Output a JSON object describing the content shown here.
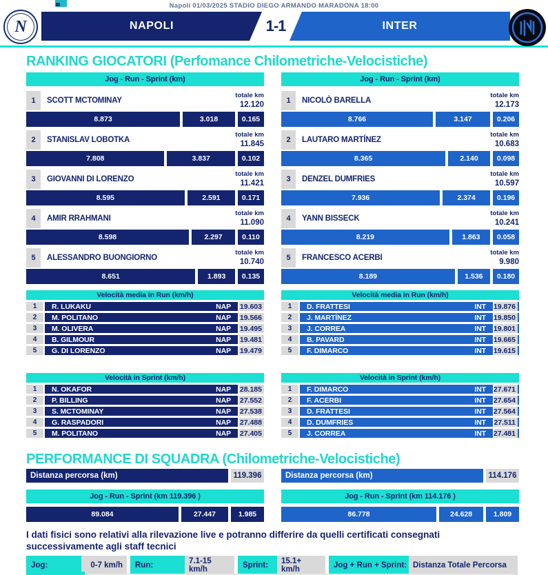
{
  "colors": {
    "napoli_navy": "#14246e",
    "inter_blue": "#1f64c8",
    "accent_cyan": "#1adfd2",
    "heading_cyan": "#1fd8cc",
    "cell_gray": "#d9d9d9"
  },
  "header": {
    "context_bar": "Napoli 01/03/2025 STADIO DIEGO ARMANDO MARADONA 18:00",
    "home": "NAPOLI",
    "score": "1-1",
    "away": "INTER",
    "napoli_crest_letter": "N"
  },
  "sections": {
    "ranking_title": "RANKING GIOCATORI (Perfomance Chilometriche-Velocistiche)",
    "performance_title": "PERFORMANCE DI SQUADRA (Chilometriche-Velocistiche)"
  },
  "labels": {
    "totale_km": "totale km"
  },
  "chart_data": [
    {
      "id": "ranking-napoli",
      "type": "bar",
      "title": "Jog - Run - Sprint (km)",
      "team": "NAPOLI",
      "players": [
        {
          "rank": "1",
          "name": "SCOTT MCTOMINAY",
          "total": "12.120",
          "jog": "8.873",
          "run": "3.018",
          "sprint": "0.165"
        },
        {
          "rank": "2",
          "name": "STANISLAV LOBOTKA",
          "total": "11.845",
          "jog": "7.808",
          "run": "3.837",
          "sprint": "0.102"
        },
        {
          "rank": "3",
          "name": "GIOVANNI DI LORENZO",
          "total": "11.421",
          "jog": "8.595",
          "run": "2.591",
          "sprint": "0.171"
        },
        {
          "rank": "4",
          "name": "AMIR RRAHMANI",
          "total": "11.090",
          "jog": "8.598",
          "run": "2.297",
          "sprint": "0.110"
        },
        {
          "rank": "5",
          "name": "ALESSANDRO BUONGIORNO",
          "total": "10.740",
          "jog": "8.651",
          "run": "1.893",
          "sprint": "0.135"
        }
      ]
    },
    {
      "id": "ranking-inter",
      "type": "bar",
      "title": "Jog - Run - Sprint (km)",
      "team": "INTER",
      "players": [
        {
          "rank": "1",
          "name": "NICOLÒ BARELLA",
          "total": "12.173",
          "jog": "8.766",
          "run": "3.147",
          "sprint": "0.206"
        },
        {
          "rank": "2",
          "name": "LAUTARO MARTÍNEZ",
          "total": "10.683",
          "jog": "8.365",
          "run": "2.140",
          "sprint": "0.098"
        },
        {
          "rank": "3",
          "name": "DENZEL DUMFRIES",
          "total": "10.597",
          "jog": "7.936",
          "run": "2.374",
          "sprint": "0.196"
        },
        {
          "rank": "4",
          "name": "YANN BISSECK",
          "total": "10.241",
          "jog": "8.219",
          "run": "1.863",
          "sprint": "0.058"
        },
        {
          "rank": "5",
          "name": "FRANCESCO ACERBI",
          "total": "9.980",
          "jog": "8.189",
          "run": "1.536",
          "sprint": "0.180"
        }
      ]
    },
    {
      "id": "run-speed-napoli",
      "type": "table",
      "title": "Velocità media in Run (km/h)",
      "rows": [
        {
          "rank": "1",
          "name": "R. LUKAKU",
          "team": "NAP",
          "value": "19.603"
        },
        {
          "rank": "2",
          "name": "M. POLITANO",
          "team": "NAP",
          "value": "19.566"
        },
        {
          "rank": "3",
          "name": "M. OLIVERA",
          "team": "NAP",
          "value": "19.495"
        },
        {
          "rank": "4",
          "name": "B. GILMOUR",
          "team": "NAP",
          "value": "19.481"
        },
        {
          "rank": "5",
          "name": "G. DI LORENZO",
          "team": "NAP",
          "value": "19.479"
        }
      ]
    },
    {
      "id": "run-speed-inter",
      "type": "table",
      "title": "Velocità media in Run (km/h)",
      "rows": [
        {
          "rank": "1",
          "name": "D. FRATTESI",
          "team": "INT",
          "value": "19.876"
        },
        {
          "rank": "2",
          "name": "J. MARTÍNEZ",
          "team": "INT",
          "value": "19.850"
        },
        {
          "rank": "3",
          "name": "J. CORREA",
          "team": "INT",
          "value": "19.801"
        },
        {
          "rank": "4",
          "name": "B. PAVARD",
          "team": "INT",
          "value": "19.665"
        },
        {
          "rank": "5",
          "name": "F. DIMARCO",
          "team": "INT",
          "value": "19.615"
        }
      ]
    },
    {
      "id": "sprint-speed-napoli",
      "type": "table",
      "title": "Velocità in Sprint (km/h)",
      "rows": [
        {
          "rank": "1",
          "name": "N. OKAFOR",
          "team": "NAP",
          "value": "28.185"
        },
        {
          "rank": "2",
          "name": "P. BILLING",
          "team": "NAP",
          "value": "27.552"
        },
        {
          "rank": "3",
          "name": "S. MCTOMINAY",
          "team": "NAP",
          "value": "27.538"
        },
        {
          "rank": "4",
          "name": "G. RASPADORI",
          "team": "NAP",
          "value": "27.488"
        },
        {
          "rank": "5",
          "name": "M. POLITANO",
          "team": "NAP",
          "value": "27.405"
        }
      ]
    },
    {
      "id": "sprint-speed-inter",
      "type": "table",
      "title": "Velocità in Sprint (km/h)",
      "rows": [
        {
          "rank": "1",
          "name": "F. DIMARCO",
          "team": "INT",
          "value": "27.671"
        },
        {
          "rank": "2",
          "name": "F. ACERBI",
          "team": "INT",
          "value": "27.654"
        },
        {
          "rank": "3",
          "name": "D. FRATTESI",
          "team": "INT",
          "value": "27.564"
        },
        {
          "rank": "4",
          "name": "D. DUMFRIES",
          "team": "INT",
          "value": "27.511"
        },
        {
          "rank": "5",
          "name": "J. CORREA",
          "team": "INT",
          "value": "27.481"
        }
      ]
    },
    {
      "id": "team-napoli",
      "type": "bar",
      "team": "NAPOLI",
      "distance_label": "Distanza percorsa (km)",
      "total": "119.396",
      "title": "Jog - Run - Sprint (km 119.396 )",
      "jog": "89.084",
      "run": "27.447",
      "sprint": "1.985"
    },
    {
      "id": "team-inter",
      "type": "bar",
      "team": "INTER",
      "distance_label": "Distanza percorsa (km)",
      "total": "114.176",
      "title": "Jog - Run - Sprint (km 114.176 )",
      "jog": "86.778",
      "run": "24.628",
      "sprint": "1.809"
    }
  ],
  "disclaimer": "I dati fisici sono relativi alla rilevazione live e potranno differire da quelli certificati consegnati successivamente agli staff tecnici",
  "legend": [
    {
      "label": "Jog:",
      "value": "0-7 km/h"
    },
    {
      "label": "Run:",
      "value": "7.1-15 km/h"
    },
    {
      "label": "Sprint:",
      "value": "15.1+ km/h"
    },
    {
      "label": "Jog + Run + Sprint:",
      "value": "Distanza Totale Percorsa"
    }
  ]
}
